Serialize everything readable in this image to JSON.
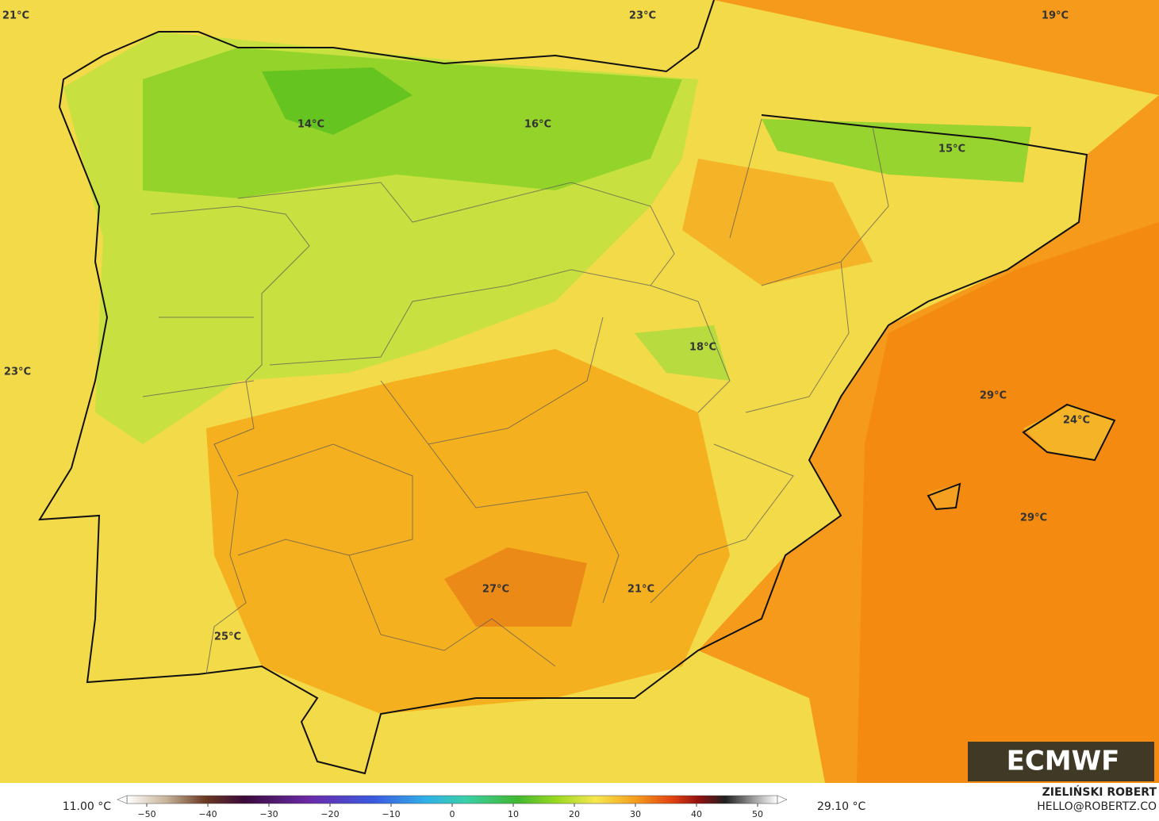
{
  "map": {
    "labels": [
      "21°C",
      "23°C",
      "19°C",
      "14°C",
      "16°C",
      "15°C",
      "18°C",
      "23°C",
      "29°C",
      "24°C",
      "29°C",
      "27°C",
      "21°C",
      "25°C"
    ],
    "logo": "ECMWF",
    "credit_name": "ZIELIŃSKI ROBERT",
    "credit_mail": "HELLO@ROBERTZ.CO"
  },
  "colorbar": {
    "min_label": "11.00 °C",
    "max_label": "29.10 °C",
    "ticks": [
      "−50",
      "−40",
      "−30",
      "−20",
      "−10",
      "0",
      "10",
      "20",
      "30",
      "40",
      "50"
    ]
  }
}
